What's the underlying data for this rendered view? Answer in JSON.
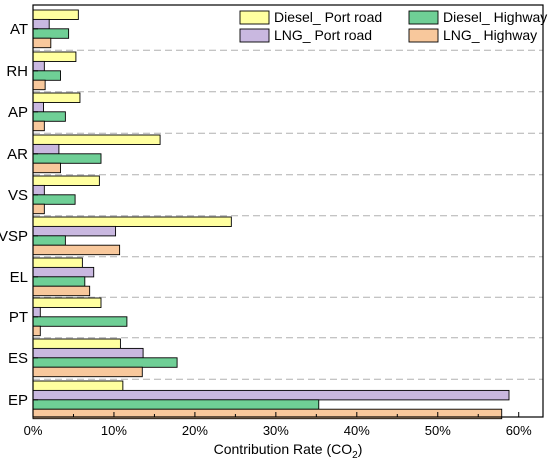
{
  "chart_data": {
    "type": "bar",
    "orientation": "horizontal",
    "categories": [
      "AT",
      "RH",
      "AP",
      "AR",
      "VS",
      "VSP",
      "EL",
      "PT",
      "ES",
      "EP"
    ],
    "series": [
      {
        "name": "Diesel_ Port road",
        "color": "#ffffa0",
        "values": [
          5.6,
          5.3,
          5.8,
          15.7,
          8.2,
          24.5,
          6.1,
          8.4,
          10.8,
          11.1
        ]
      },
      {
        "name": "LNG_ Port road",
        "color": "#c9b8e0",
        "values": [
          2.0,
          1.4,
          1.3,
          3.2,
          1.4,
          10.2,
          7.5,
          0.9,
          13.6,
          58.8
        ]
      },
      {
        "name": "Diesel_ Highway",
        "color": "#6fcf96",
        "values": [
          4.4,
          3.4,
          4.0,
          8.4,
          5.2,
          4.0,
          6.4,
          11.6,
          17.8,
          35.3
        ]
      },
      {
        "name": "LNG_ Highway",
        "color": "#f8c89c",
        "values": [
          2.2,
          1.5,
          1.4,
          3.4,
          1.4,
          10.7,
          7.0,
          0.9,
          13.5,
          57.9
        ]
      }
    ],
    "xlabel": "Contribution Rate (CO",
    "xlabel_sub": "2",
    "xlabel_close": ")",
    "xlim": [
      0,
      63
    ],
    "xticks": [
      0,
      10,
      20,
      30,
      40,
      50,
      60
    ],
    "xtick_labels": [
      "0%",
      "10%",
      "20%",
      "30%",
      "40%",
      "50%",
      "60%"
    ],
    "grid": "dashed separators between categories",
    "legend_position": "top-right"
  }
}
